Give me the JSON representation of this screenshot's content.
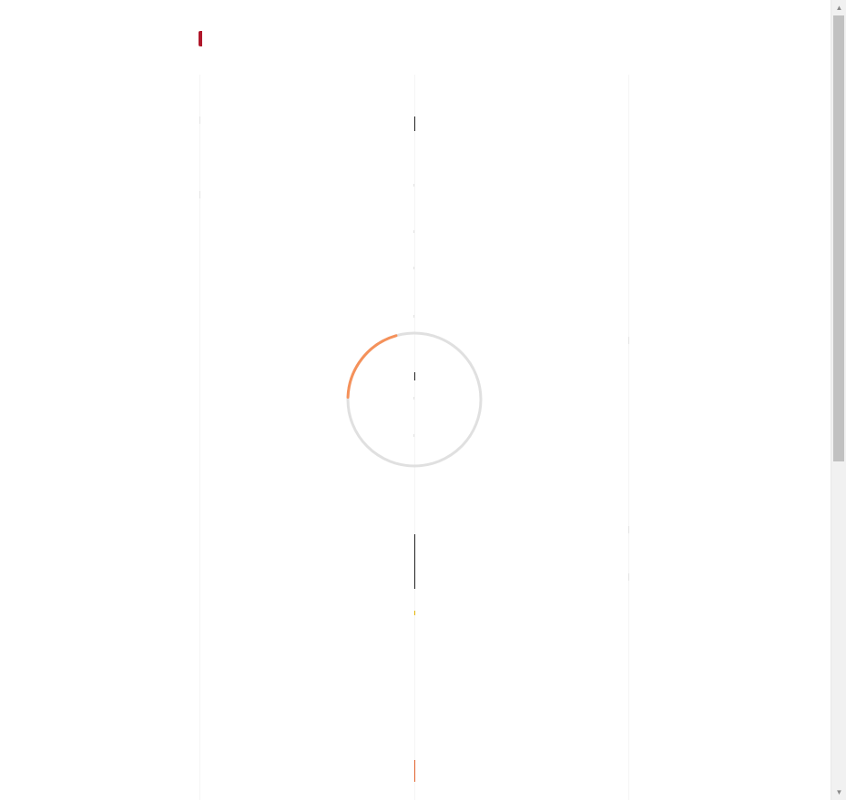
{
  "page": {
    "title": "",
    "state": "loading"
  },
  "loader": {
    "progress_fraction": 0.2,
    "track_color": "#e0e0e0",
    "arc_color": "#f5915a"
  },
  "brand": {
    "accent_color": "#b0182b"
  },
  "scrollbar": {
    "up_arrow": "▲",
    "down_arrow": "▼",
    "thumb_fraction": 0.58
  }
}
